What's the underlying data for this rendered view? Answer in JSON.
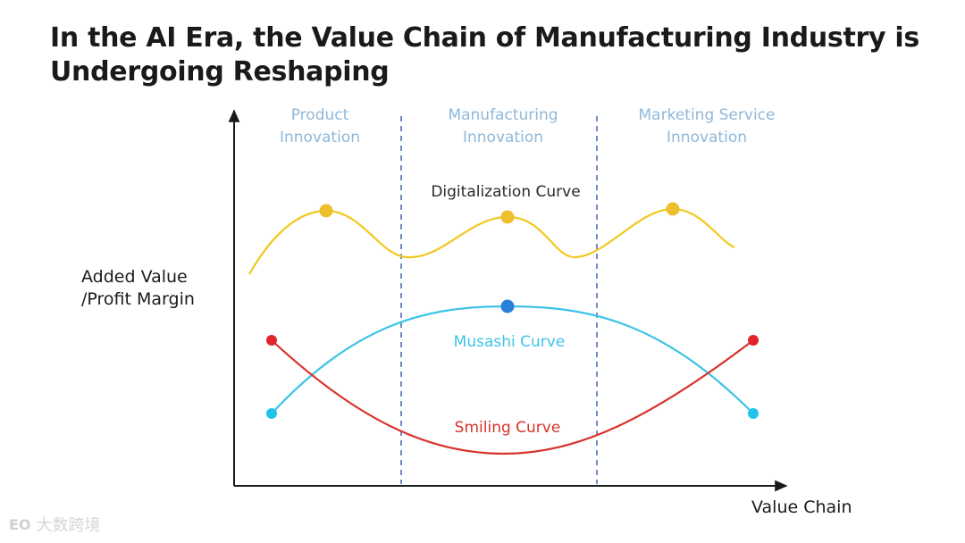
{
  "title": {
    "line1": "In the AI Era, the Value Chain of Manufacturing Industry is",
    "line2": "Undergoing Reshaping"
  },
  "stages": [
    {
      "line1": "Product",
      "line2": "Innovation"
    },
    {
      "line1": "Manufacturing",
      "line2": "Innovation"
    },
    {
      "line1": "Marketing Service",
      "line2": "Innovation"
    }
  ],
  "y_axis_label": {
    "line1": "Added Value",
    "line2": "/Profit Margin"
  },
  "x_axis_label": "Value Chain",
  "curves": [
    {
      "name": "Digitalization Curve",
      "color": "#f2c81f",
      "marker_color": "#efbe2c"
    },
    {
      "name": "Musashi Curve",
      "color": "#3ec4e8",
      "marker_color": "#2a7fd9",
      "end_marker_color": "#22c3ea"
    },
    {
      "name": "Smiling Curve",
      "color": "#d8332c",
      "marker_color": "#e0242a"
    }
  ],
  "watermark": {
    "logo": "EO",
    "text": "大数跨境"
  },
  "colors": {
    "axis": "#1a1a1a",
    "divider": "#4a6fb5",
    "stage_text": "#8fb8d9"
  }
}
